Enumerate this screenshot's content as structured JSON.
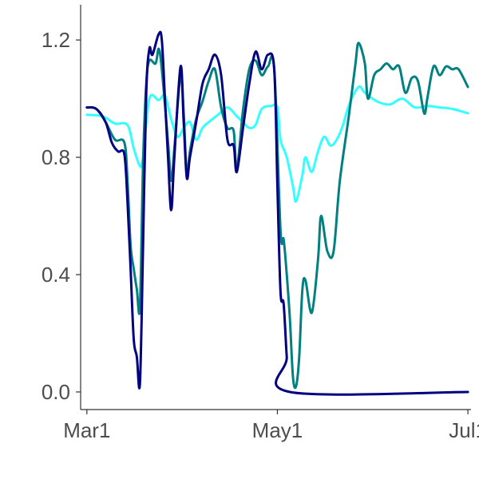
{
  "chart_data": {
    "type": "line",
    "title": "",
    "xlabel": "",
    "ylabel": "",
    "grid": false,
    "legend": "none",
    "x_axis": {
      "type": "date",
      "range": [
        "2020-02-28",
        "2020-07-02"
      ],
      "ticks": [
        {
          "value": "2020-03-01",
          "label": "Mar1"
        },
        {
          "value": "2020-05-01",
          "label": "May1"
        },
        {
          "value": "2020-07-01",
          "label": "Jul1"
        }
      ]
    },
    "y_axis": {
      "range": [
        -0.06,
        1.32
      ],
      "ticks": [
        {
          "value": 0.0,
          "label": "0.0"
        },
        {
          "value": 0.4,
          "label": "0.4"
        },
        {
          "value": 0.8,
          "label": "0.8"
        },
        {
          "value": 1.2,
          "label": "1.2"
        }
      ]
    },
    "series": [
      {
        "color": "#33ffff",
        "points": [
          [
            "2020-03-01",
            0.945
          ],
          [
            "2020-03-06",
            0.94
          ],
          [
            "2020-03-10",
            0.915
          ],
          [
            "2020-03-14",
            0.91
          ],
          [
            "2020-03-16",
            0.83
          ],
          [
            "2020-03-18",
            0.77
          ],
          [
            "2020-03-19",
            0.8
          ],
          [
            "2020-03-21",
            1.0
          ],
          [
            "2020-03-24",
            0.995
          ],
          [
            "2020-03-26",
            1.01
          ],
          [
            "2020-03-28",
            0.93
          ],
          [
            "2020-03-30",
            0.87
          ],
          [
            "2020-04-01",
            0.9
          ],
          [
            "2020-04-03",
            0.92
          ],
          [
            "2020-04-05",
            0.86
          ],
          [
            "2020-04-07",
            0.9
          ],
          [
            "2020-04-09",
            0.92
          ],
          [
            "2020-04-12",
            0.945
          ],
          [
            "2020-04-15",
            0.97
          ],
          [
            "2020-04-18",
            0.94
          ],
          [
            "2020-04-20",
            0.92
          ],
          [
            "2020-04-22",
            0.9
          ],
          [
            "2020-04-24",
            0.91
          ],
          [
            "2020-04-26",
            0.965
          ],
          [
            "2020-04-29",
            0.975
          ],
          [
            "2020-05-01",
            0.97
          ],
          [
            "2020-05-02",
            0.86
          ],
          [
            "2020-05-04",
            0.8
          ],
          [
            "2020-05-06",
            0.7
          ],
          [
            "2020-05-07",
            0.65
          ],
          [
            "2020-05-09",
            0.74
          ],
          [
            "2020-05-10",
            0.8
          ],
          [
            "2020-05-12",
            0.75
          ],
          [
            "2020-05-14",
            0.82
          ],
          [
            "2020-05-16",
            0.87
          ],
          [
            "2020-05-18",
            0.84
          ],
          [
            "2020-05-20",
            0.86
          ],
          [
            "2020-05-22",
            0.91
          ],
          [
            "2020-05-24",
            0.98
          ],
          [
            "2020-05-27",
            1.04
          ],
          [
            "2020-05-29",
            1.02
          ],
          [
            "2020-06-02",
            0.99
          ],
          [
            "2020-06-06",
            0.98
          ],
          [
            "2020-06-10",
            1.0
          ],
          [
            "2020-06-14",
            0.97
          ],
          [
            "2020-06-18",
            0.975
          ],
          [
            "2020-06-22",
            0.97
          ],
          [
            "2020-06-26",
            0.965
          ],
          [
            "2020-07-01",
            0.95
          ]
        ]
      },
      {
        "color": "#008080",
        "points": [
          [
            "2020-03-01",
            0.97
          ],
          [
            "2020-03-04",
            0.965
          ],
          [
            "2020-03-07",
            0.92
          ],
          [
            "2020-03-10",
            0.86
          ],
          [
            "2020-03-13",
            0.85
          ],
          [
            "2020-03-14",
            0.72
          ],
          [
            "2020-03-15",
            0.5
          ],
          [
            "2020-03-16",
            0.42
          ],
          [
            "2020-03-17",
            0.35
          ],
          [
            "2020-03-18",
            0.29
          ],
          [
            "2020-03-19",
            0.78
          ],
          [
            "2020-03-20",
            1.05
          ],
          [
            "2020-03-21",
            1.13
          ],
          [
            "2020-03-23",
            1.12
          ],
          [
            "2020-03-24",
            1.17
          ],
          [
            "2020-03-25",
            1.1
          ],
          [
            "2020-03-27",
            0.85
          ],
          [
            "2020-03-28",
            0.72
          ],
          [
            "2020-03-29",
            0.83
          ],
          [
            "2020-03-31",
            1.08
          ],
          [
            "2020-04-01",
            0.95
          ],
          [
            "2020-04-02",
            0.74
          ],
          [
            "2020-04-03",
            0.82
          ],
          [
            "2020-04-05",
            0.93
          ],
          [
            "2020-04-07",
            0.99
          ],
          [
            "2020-04-09",
            1.06
          ],
          [
            "2020-04-11",
            1.1
          ],
          [
            "2020-04-13",
            0.97
          ],
          [
            "2020-04-15",
            0.9
          ],
          [
            "2020-04-17",
            0.89
          ],
          [
            "2020-04-18",
            0.76
          ],
          [
            "2020-04-20",
            0.96
          ],
          [
            "2020-04-22",
            1.1
          ],
          [
            "2020-04-24",
            1.13
          ],
          [
            "2020-04-26",
            1.08
          ],
          [
            "2020-04-28",
            1.11
          ],
          [
            "2020-04-30",
            1.1
          ],
          [
            "2020-05-02",
            0.55
          ],
          [
            "2020-05-03",
            0.52
          ],
          [
            "2020-05-04",
            0.4
          ],
          [
            "2020-05-05",
            0.25
          ],
          [
            "2020-05-06",
            0.05
          ],
          [
            "2020-05-07",
            0.02
          ],
          [
            "2020-05-08",
            0.12
          ],
          [
            "2020-05-09",
            0.35
          ],
          [
            "2020-05-10",
            0.38
          ],
          [
            "2020-05-12",
            0.27
          ],
          [
            "2020-05-14",
            0.45
          ],
          [
            "2020-05-15",
            0.6
          ],
          [
            "2020-05-17",
            0.48
          ],
          [
            "2020-05-19",
            0.48
          ],
          [
            "2020-05-21",
            0.72
          ],
          [
            "2020-05-24",
            0.95
          ],
          [
            "2020-05-26",
            1.12
          ],
          [
            "2020-05-27",
            1.19
          ],
          [
            "2020-05-29",
            1.12
          ],
          [
            "2020-05-30",
            1.0
          ],
          [
            "2020-06-01",
            1.08
          ],
          [
            "2020-06-03",
            1.1
          ],
          [
            "2020-06-05",
            1.12
          ],
          [
            "2020-06-07",
            1.1
          ],
          [
            "2020-06-09",
            1.11
          ],
          [
            "2020-06-11",
            1.02
          ],
          [
            "2020-06-13",
            1.07
          ],
          [
            "2020-06-15",
            1.06
          ],
          [
            "2020-06-17",
            0.95
          ],
          [
            "2020-06-18",
            1.0
          ],
          [
            "2020-06-20",
            1.11
          ],
          [
            "2020-06-22",
            1.08
          ],
          [
            "2020-06-24",
            1.11
          ],
          [
            "2020-06-26",
            1.1
          ],
          [
            "2020-06-28",
            1.1
          ],
          [
            "2020-07-01",
            1.04
          ]
        ]
      },
      {
        "color": "#000080",
        "points": [
          [
            "2020-03-01",
            0.97
          ],
          [
            "2020-03-04",
            0.965
          ],
          [
            "2020-03-07",
            0.92
          ],
          [
            "2020-03-09",
            0.85
          ],
          [
            "2020-03-11",
            0.82
          ],
          [
            "2020-03-13",
            0.81
          ],
          [
            "2020-03-14",
            0.65
          ],
          [
            "2020-03-15",
            0.42
          ],
          [
            "2020-03-16",
            0.18
          ],
          [
            "2020-03-17",
            0.12
          ],
          [
            "2020-03-18",
            0.03
          ],
          [
            "2020-03-19",
            0.5
          ],
          [
            "2020-03-20",
            1.02
          ],
          [
            "2020-03-21",
            1.17
          ],
          [
            "2020-03-22",
            1.15
          ],
          [
            "2020-03-24",
            1.22
          ],
          [
            "2020-03-25",
            1.2
          ],
          [
            "2020-03-26",
            1.0
          ],
          [
            "2020-03-27",
            0.8
          ],
          [
            "2020-03-28",
            0.62
          ],
          [
            "2020-03-29",
            0.8
          ],
          [
            "2020-03-31",
            1.11
          ],
          [
            "2020-04-01",
            0.92
          ],
          [
            "2020-04-02",
            0.73
          ],
          [
            "2020-04-03",
            0.8
          ],
          [
            "2020-04-05",
            0.92
          ],
          [
            "2020-04-07",
            1.05
          ],
          [
            "2020-04-09",
            1.1
          ],
          [
            "2020-04-11",
            1.15
          ],
          [
            "2020-04-13",
            1.08
          ],
          [
            "2020-04-15",
            0.86
          ],
          [
            "2020-04-17",
            0.84
          ],
          [
            "2020-04-18",
            0.75
          ],
          [
            "2020-04-20",
            0.9
          ],
          [
            "2020-04-22",
            1.05
          ],
          [
            "2020-04-24",
            1.16
          ],
          [
            "2020-04-26",
            1.1
          ],
          [
            "2020-04-28",
            1.15
          ],
          [
            "2020-04-30",
            1.1
          ],
          [
            "2020-05-01",
            0.7
          ],
          [
            "2020-05-02",
            0.34
          ],
          [
            "2020-05-03",
            0.3
          ],
          [
            "2020-05-04",
            0.12
          ],
          [
            "2020-05-05",
            0.0
          ],
          [
            "2020-07-01",
            0.0
          ]
        ]
      }
    ]
  }
}
